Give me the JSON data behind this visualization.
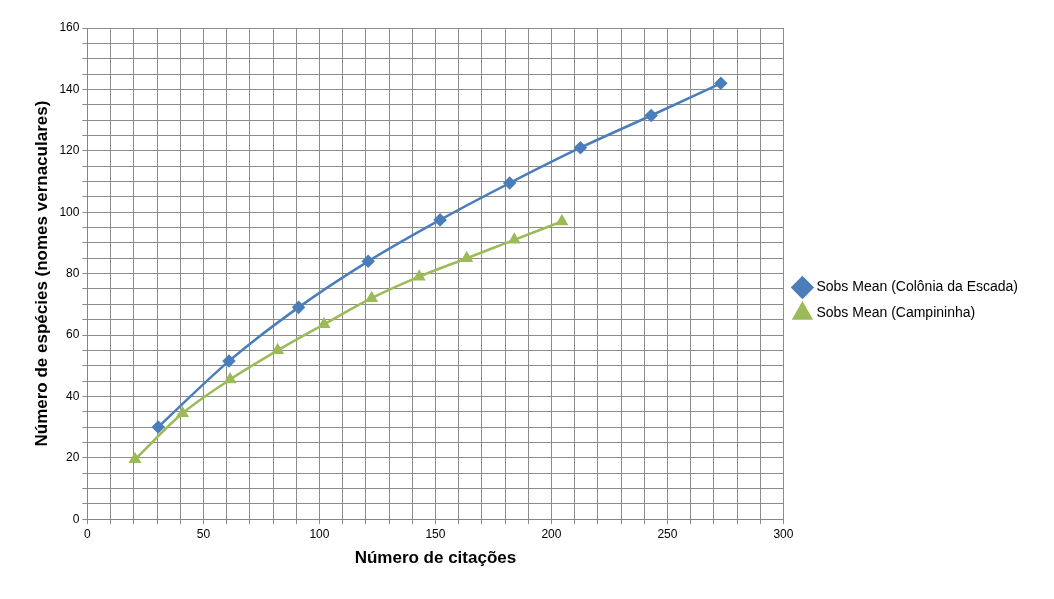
{
  "chart_data": {
    "type": "line",
    "xlabel": "Número de citações",
    "ylabel": "Número de espécies (nomes vernaculares)",
    "xlim": [
      0,
      300
    ],
    "ylim": [
      0,
      160
    ],
    "xticks": [
      0,
      {
        "value": 10,
        "label": null
      },
      {
        "value": 20,
        "label": null
      },
      {
        "value": 30,
        "label": null
      },
      {
        "value": 40,
        "label": null
      },
      50,
      {
        "value": 60,
        "label": null
      },
      {
        "value": 70,
        "label": null
      },
      {
        "value": 80,
        "label": null
      },
      {
        "value": 90,
        "label": null
      },
      100,
      {
        "value": 110,
        "label": null
      },
      {
        "value": 120,
        "label": null
      },
      {
        "value": 130,
        "label": null
      },
      {
        "value": 140,
        "label": null
      },
      150,
      {
        "value": 160,
        "label": null
      },
      {
        "value": 170,
        "label": null
      },
      {
        "value": 180,
        "label": null
      },
      {
        "value": 190,
        "label": null
      },
      200,
      {
        "value": 210,
        "label": null
      },
      {
        "value": 220,
        "label": null
      },
      {
        "value": 230,
        "label": null
      },
      {
        "value": 240,
        "label": null
      },
      250,
      {
        "value": 260,
        "label": null
      },
      {
        "value": 270,
        "label": null
      },
      {
        "value": 280,
        "label": null
      },
      {
        "value": 290,
        "label": null
      },
      300
    ],
    "yticks": [
      0,
      {
        "value": 5,
        "label": null
      },
      {
        "value": 10,
        "label": null
      },
      {
        "value": 15,
        "label": null
      },
      20,
      {
        "value": 25,
        "label": null
      },
      {
        "value": 30,
        "label": null
      },
      {
        "value": 35,
        "label": null
      },
      40,
      {
        "value": 45,
        "label": null
      },
      {
        "value": 50,
        "label": null
      },
      {
        "value": 55,
        "label": null
      },
      60,
      {
        "value": 65,
        "label": null
      },
      {
        "value": 70,
        "label": null
      },
      {
        "value": 75,
        "label": null
      },
      80,
      {
        "value": 85,
        "label": null
      },
      {
        "value": 90,
        "label": null
      },
      {
        "value": 95,
        "label": null
      },
      100,
      {
        "value": 105,
        "label": null
      },
      {
        "value": 110,
        "label": null
      },
      {
        "value": 115,
        "label": null
      },
      120,
      {
        "value": 125,
        "label": null
      },
      {
        "value": 130,
        "label": null
      },
      {
        "value": 135,
        "label": null
      },
      140,
      {
        "value": 145,
        "label": null
      },
      {
        "value": 150,
        "label": null
      },
      {
        "value": 155,
        "label": null
      },
      160
    ],
    "grid": true,
    "legend": "right",
    "series": [
      {
        "name": "Sobs Mean (Colônia da Escada)",
        "color": "#4a7ebb",
        "marker": "diamond",
        "x": [
          30.5,
          61,
          91,
          121,
          152,
          182,
          212.5,
          243,
          273
        ],
        "values": [
          30,
          51.5,
          69,
          84,
          97.5,
          109.5,
          121,
          131.5,
          142
        ]
      },
      {
        "name": "Sobs Mean (Campininha)",
        "color": "#9bbb59",
        "marker": "triangle",
        "x": [
          20.5,
          41,
          61.5,
          82,
          102,
          122.5,
          143,
          163.5,
          184,
          204.5
        ],
        "values": [
          19.5,
          34.5,
          45.5,
          55,
          63.5,
          72,
          79,
          85,
          91,
          97
        ]
      }
    ]
  }
}
